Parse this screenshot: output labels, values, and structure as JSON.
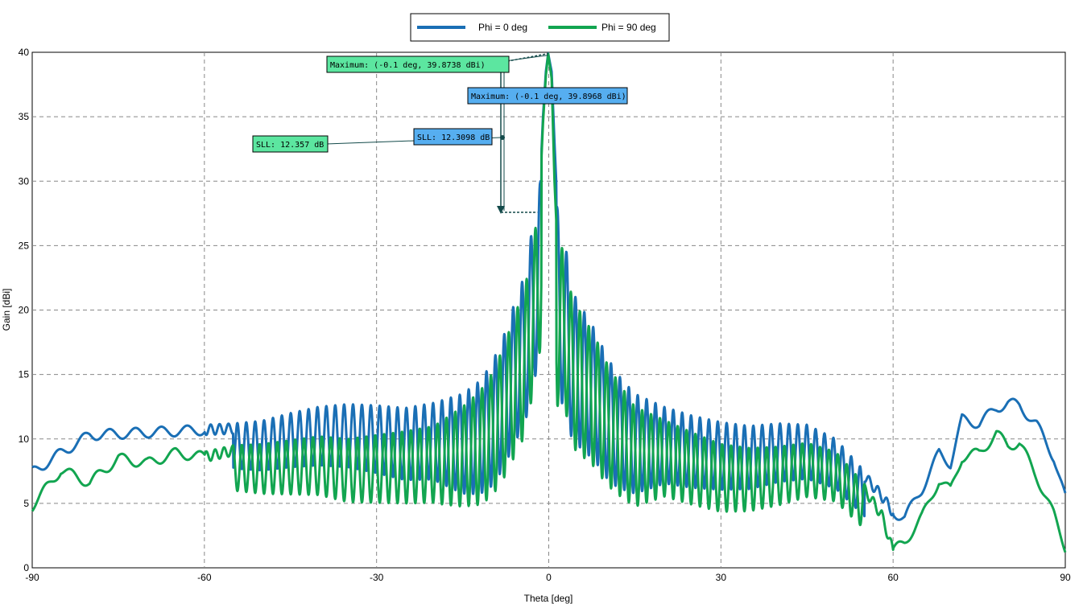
{
  "chart_data": {
    "type": "line",
    "xlabel": "Theta [deg]",
    "ylabel": "Gain [dBi]",
    "xlim": [
      -90,
      90
    ],
    "ylim": [
      0,
      40
    ],
    "xticks": [
      -90,
      -60,
      -30,
      0,
      30,
      60,
      90
    ],
    "yticks": [
      0,
      5,
      10,
      15,
      20,
      25,
      30,
      35,
      40
    ],
    "grid": true,
    "legend_position": "top-center",
    "series": [
      {
        "name": "Phi = 0 deg",
        "color": "#1a6fb5",
        "x": [
          -90,
          -85,
          -80,
          -75,
          -70,
          -65,
          -60,
          -55,
          -50,
          -45,
          -40,
          -35,
          -30,
          -25,
          -20,
          -15,
          -12,
          -10,
          -8,
          -6,
          -4,
          -3,
          -2,
          -1.5,
          -1,
          -0.5,
          -0.1,
          0.5,
          1,
          1.5,
          2,
          3,
          4,
          6,
          8,
          10,
          12,
          15,
          20,
          25,
          30,
          35,
          40,
          45,
          50,
          55,
          58,
          60,
          62,
          65,
          68,
          70,
          72,
          75,
          78,
          80,
          82,
          85,
          88,
          90
        ],
        "y": [
          7.8,
          9.3,
          10.7,
          10.8,
          10.9,
          11.0,
          11.1,
          11.2,
          11.4,
          12.0,
          12.5,
          12.7,
          12.6,
          12.4,
          12.8,
          13.5,
          14.5,
          15.8,
          17.8,
          20.5,
          23.0,
          26.0,
          27.6,
          30.0,
          35.0,
          38.5,
          39.9,
          38.5,
          33.0,
          28.0,
          25.0,
          24.8,
          21.5,
          20.0,
          18.5,
          16.5,
          15.0,
          13.5,
          12.5,
          11.8,
          11.3,
          11.0,
          11.2,
          11.1,
          10.0,
          7.5,
          6.0,
          4.7,
          4.3,
          6.5,
          9.3,
          8.5,
          11.9,
          11.6,
          12.8,
          13.2,
          13.0,
          11.5,
          9.0,
          5.8
        ]
      },
      {
        "name": "Phi = 90 deg",
        "color": "#12a550",
        "x": [
          -90,
          -85,
          -80,
          -75,
          -70,
          -65,
          -60,
          -55,
          -50,
          -45,
          -40,
          -35,
          -30,
          -25,
          -20,
          -15,
          -12,
          -10,
          -8,
          -6,
          -4,
          -3,
          -2,
          -1.5,
          -1,
          -0.5,
          -0.1,
          0.5,
          1,
          1.5,
          2,
          3,
          4,
          6,
          8,
          10,
          12,
          15,
          20,
          25,
          30,
          35,
          40,
          45,
          50,
          55,
          58,
          60,
          62,
          65,
          68,
          70,
          72,
          75,
          78,
          80,
          82,
          85,
          88,
          90
        ],
        "y": [
          5.2,
          8.0,
          7.0,
          8.9,
          8.5,
          9.3,
          9.0,
          9.5,
          9.6,
          9.9,
          10.2,
          10.0,
          10.3,
          10.6,
          11.0,
          12.5,
          13.7,
          15.0,
          17.0,
          19.5,
          22.0,
          25.0,
          27.0,
          29.5,
          34.5,
          38.2,
          39.87,
          38.0,
          30.0,
          25.0,
          25.2,
          24.0,
          21.0,
          19.5,
          18.0,
          16.0,
          14.5,
          12.5,
          11.5,
          10.5,
          9.6,
          9.3,
          9.4,
          9.7,
          9.0,
          6.5,
          4.5,
          1.7,
          2.4,
          4.3,
          7.2,
          6.4,
          9.0,
          9.3,
          10.8,
          9.9,
          10.1,
          7.5,
          4.5,
          2.0
        ]
      }
    ],
    "annotations": [
      {
        "text": "Maximum: (-0.1 deg, 39.8738 dBi)",
        "series": "Phi = 90 deg"
      },
      {
        "text": "Maximum: (-0.1 deg, 39.8968 dBi)",
        "series": "Phi = 0 deg"
      },
      {
        "text": "SLL: 12.357 dB",
        "series": "Phi = 90 deg"
      },
      {
        "text": "SLL: 12.3098 dB",
        "series": "Phi = 0 deg"
      }
    ]
  }
}
